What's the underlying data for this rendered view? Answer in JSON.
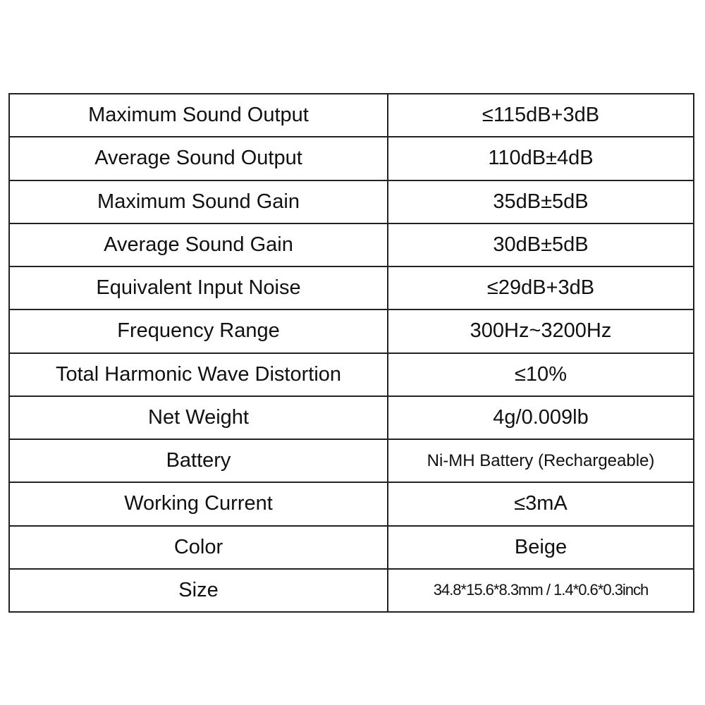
{
  "specs": [
    {
      "label": "Maximum Sound Output",
      "value": "≤115dB+3dB"
    },
    {
      "label": "Average Sound Output",
      "value": "110dB±4dB"
    },
    {
      "label": "Maximum Sound Gain",
      "value": "35dB±5dB"
    },
    {
      "label": "Average Sound Gain",
      "value": "30dB±5dB"
    },
    {
      "label": "Equivalent Input Noise",
      "value": "≤29dB+3dB"
    },
    {
      "label": "Frequency Range",
      "value": "300Hz~3200Hz"
    },
    {
      "label": "Total Harmonic Wave Distortion",
      "value": "≤10%"
    },
    {
      "label": "Net Weight",
      "value": "4g/0.009lb"
    },
    {
      "label": "Battery",
      "value": "Ni-MH Battery (Rechargeable)"
    },
    {
      "label": "Working Current",
      "value": "≤3mA"
    },
    {
      "label": "Color",
      "value": "Beige"
    },
    {
      "label": "Size",
      "value": "34.8*15.6*8.3mm / 1.4*0.6*0.3inch"
    }
  ]
}
